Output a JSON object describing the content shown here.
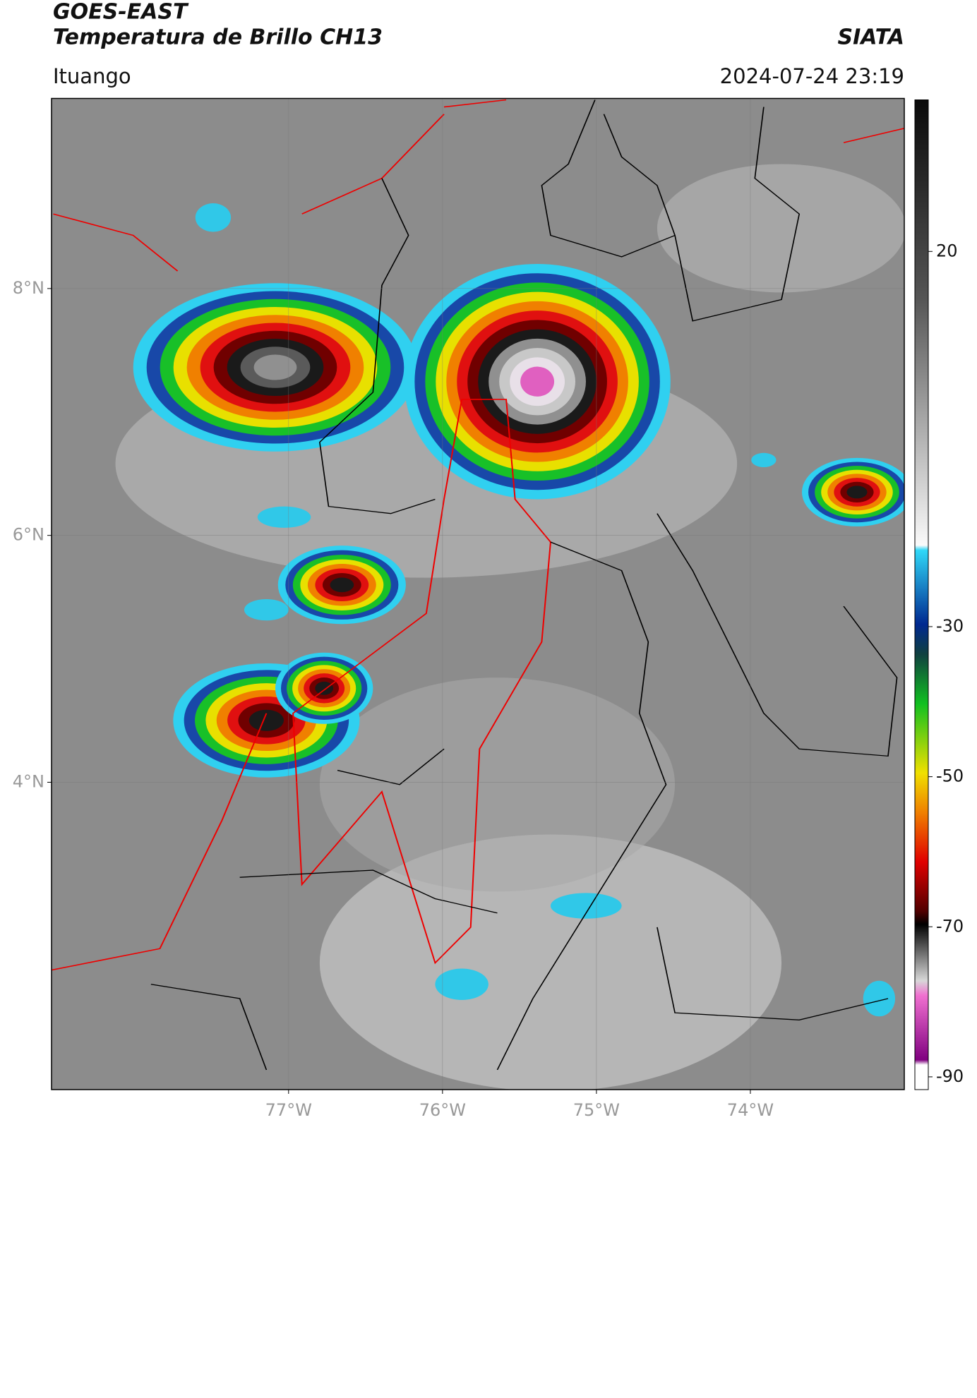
{
  "header": {
    "title": "GOES-EAST",
    "subtitle": "Temperatura de Brillo CH13",
    "source": "SIATA",
    "region": "Ituango",
    "datetime": "2024-07-24 23:19"
  },
  "map": {
    "lonlim": [
      -78.54,
      -73.0
    ],
    "latlim": [
      1.51,
      9.54
    ],
    "lon_ticks": [
      {
        "value": -77,
        "label": "77°W"
      },
      {
        "value": -76,
        "label": "76°W"
      },
      {
        "value": -75,
        "label": "75°W"
      },
      {
        "value": -74,
        "label": "74°W"
      }
    ],
    "lat_ticks": [
      {
        "value": 8,
        "label": "8°N"
      },
      {
        "value": 6,
        "label": "6°N"
      },
      {
        "value": 4,
        "label": "4°N"
      }
    ]
  },
  "colorbar": {
    "lim": [
      -91.7,
      40.2
    ],
    "ticks": [
      20,
      -30,
      -50,
      -70,
      -90
    ]
  }
}
